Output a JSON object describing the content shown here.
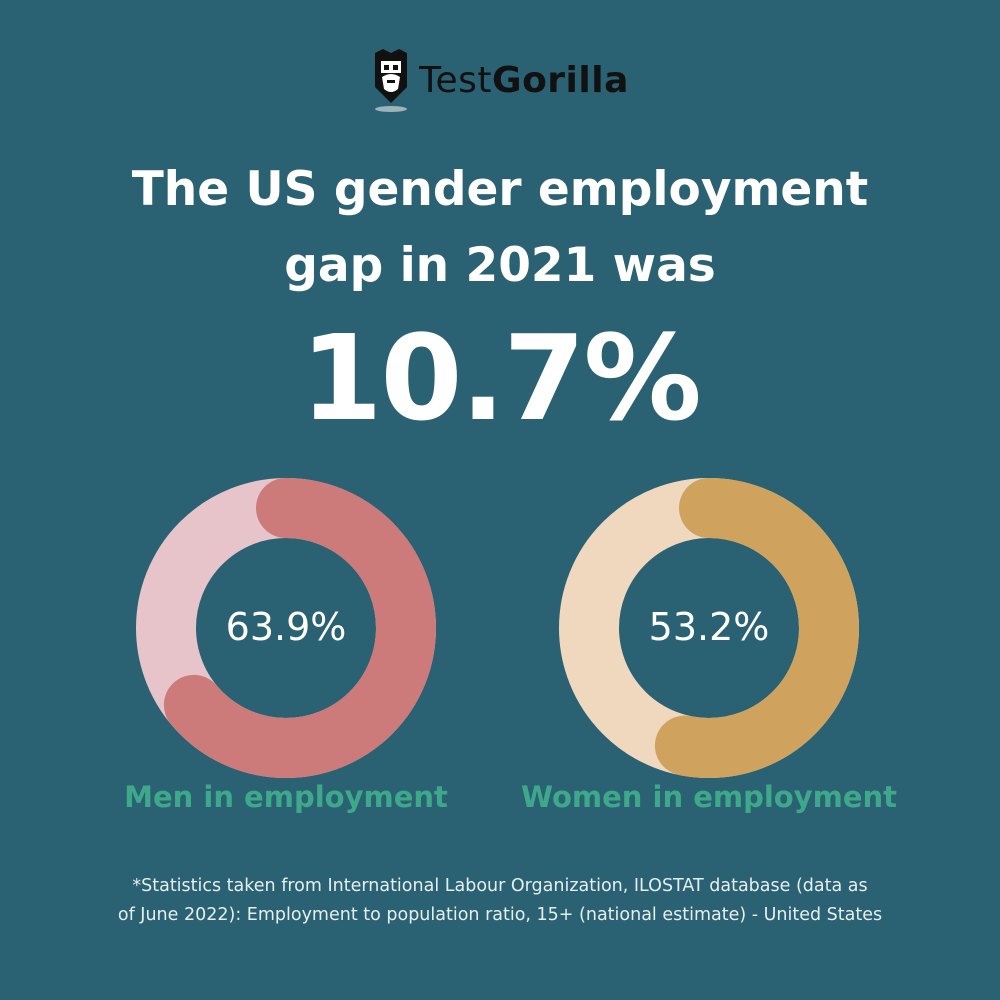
{
  "brand": {
    "name_part1": "Test",
    "name_part2": "Gorilla"
  },
  "headline": {
    "line1": "The US gender employment",
    "line2": "gap in 2021 was"
  },
  "gap_value": "10.7%",
  "chart_data": [
    {
      "type": "pie",
      "variant": "donut",
      "label": "Men in employment",
      "value_label": "63.9%",
      "value": 63.9,
      "colors": {
        "filled": "#cd7a7a",
        "remaining": "#e6c4c9"
      }
    },
    {
      "type": "pie",
      "variant": "donut",
      "label": "Women in employment",
      "value_label": "53.2%",
      "value": 53.2,
      "colors": {
        "filled": "#cfa35e",
        "remaining": "#f0d8bf"
      }
    }
  ],
  "footnote": {
    "line1": "*Statistics taken from International Labour Organization, ILOSTAT database (data as",
    "line2": "of June 2022): Employment to population ratio, 15+ (national estimate) - United States"
  },
  "colors": {
    "background": "#2a6273",
    "label_green": "#3ea98a"
  }
}
